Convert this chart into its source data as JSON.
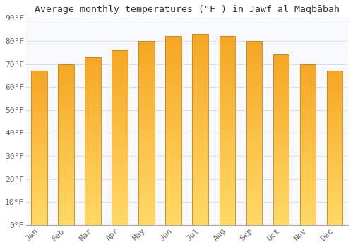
{
  "title": "Average monthly temperatures (°F ) in Jawf al Maqbābah",
  "months": [
    "Jan",
    "Feb",
    "Mar",
    "Apr",
    "May",
    "Jun",
    "Jul",
    "Aug",
    "Sep",
    "Oct",
    "Nov",
    "Dec"
  ],
  "values": [
    67,
    70,
    73,
    76,
    80,
    82,
    83,
    82,
    80,
    74,
    70,
    67
  ],
  "bar_color_top": "#F5A623",
  "bar_color_bottom": "#FFD966",
  "bar_edge_color": "#C8841A",
  "background_color": "#FFFFFF",
  "plot_bg_color": "#F8F8FF",
  "grid_color": "#E0E0E8",
  "title_fontsize": 9.5,
  "tick_fontsize": 8,
  "ylim": [
    0,
    90
  ],
  "yticks": [
    0,
    10,
    20,
    30,
    40,
    50,
    60,
    70,
    80,
    90
  ]
}
